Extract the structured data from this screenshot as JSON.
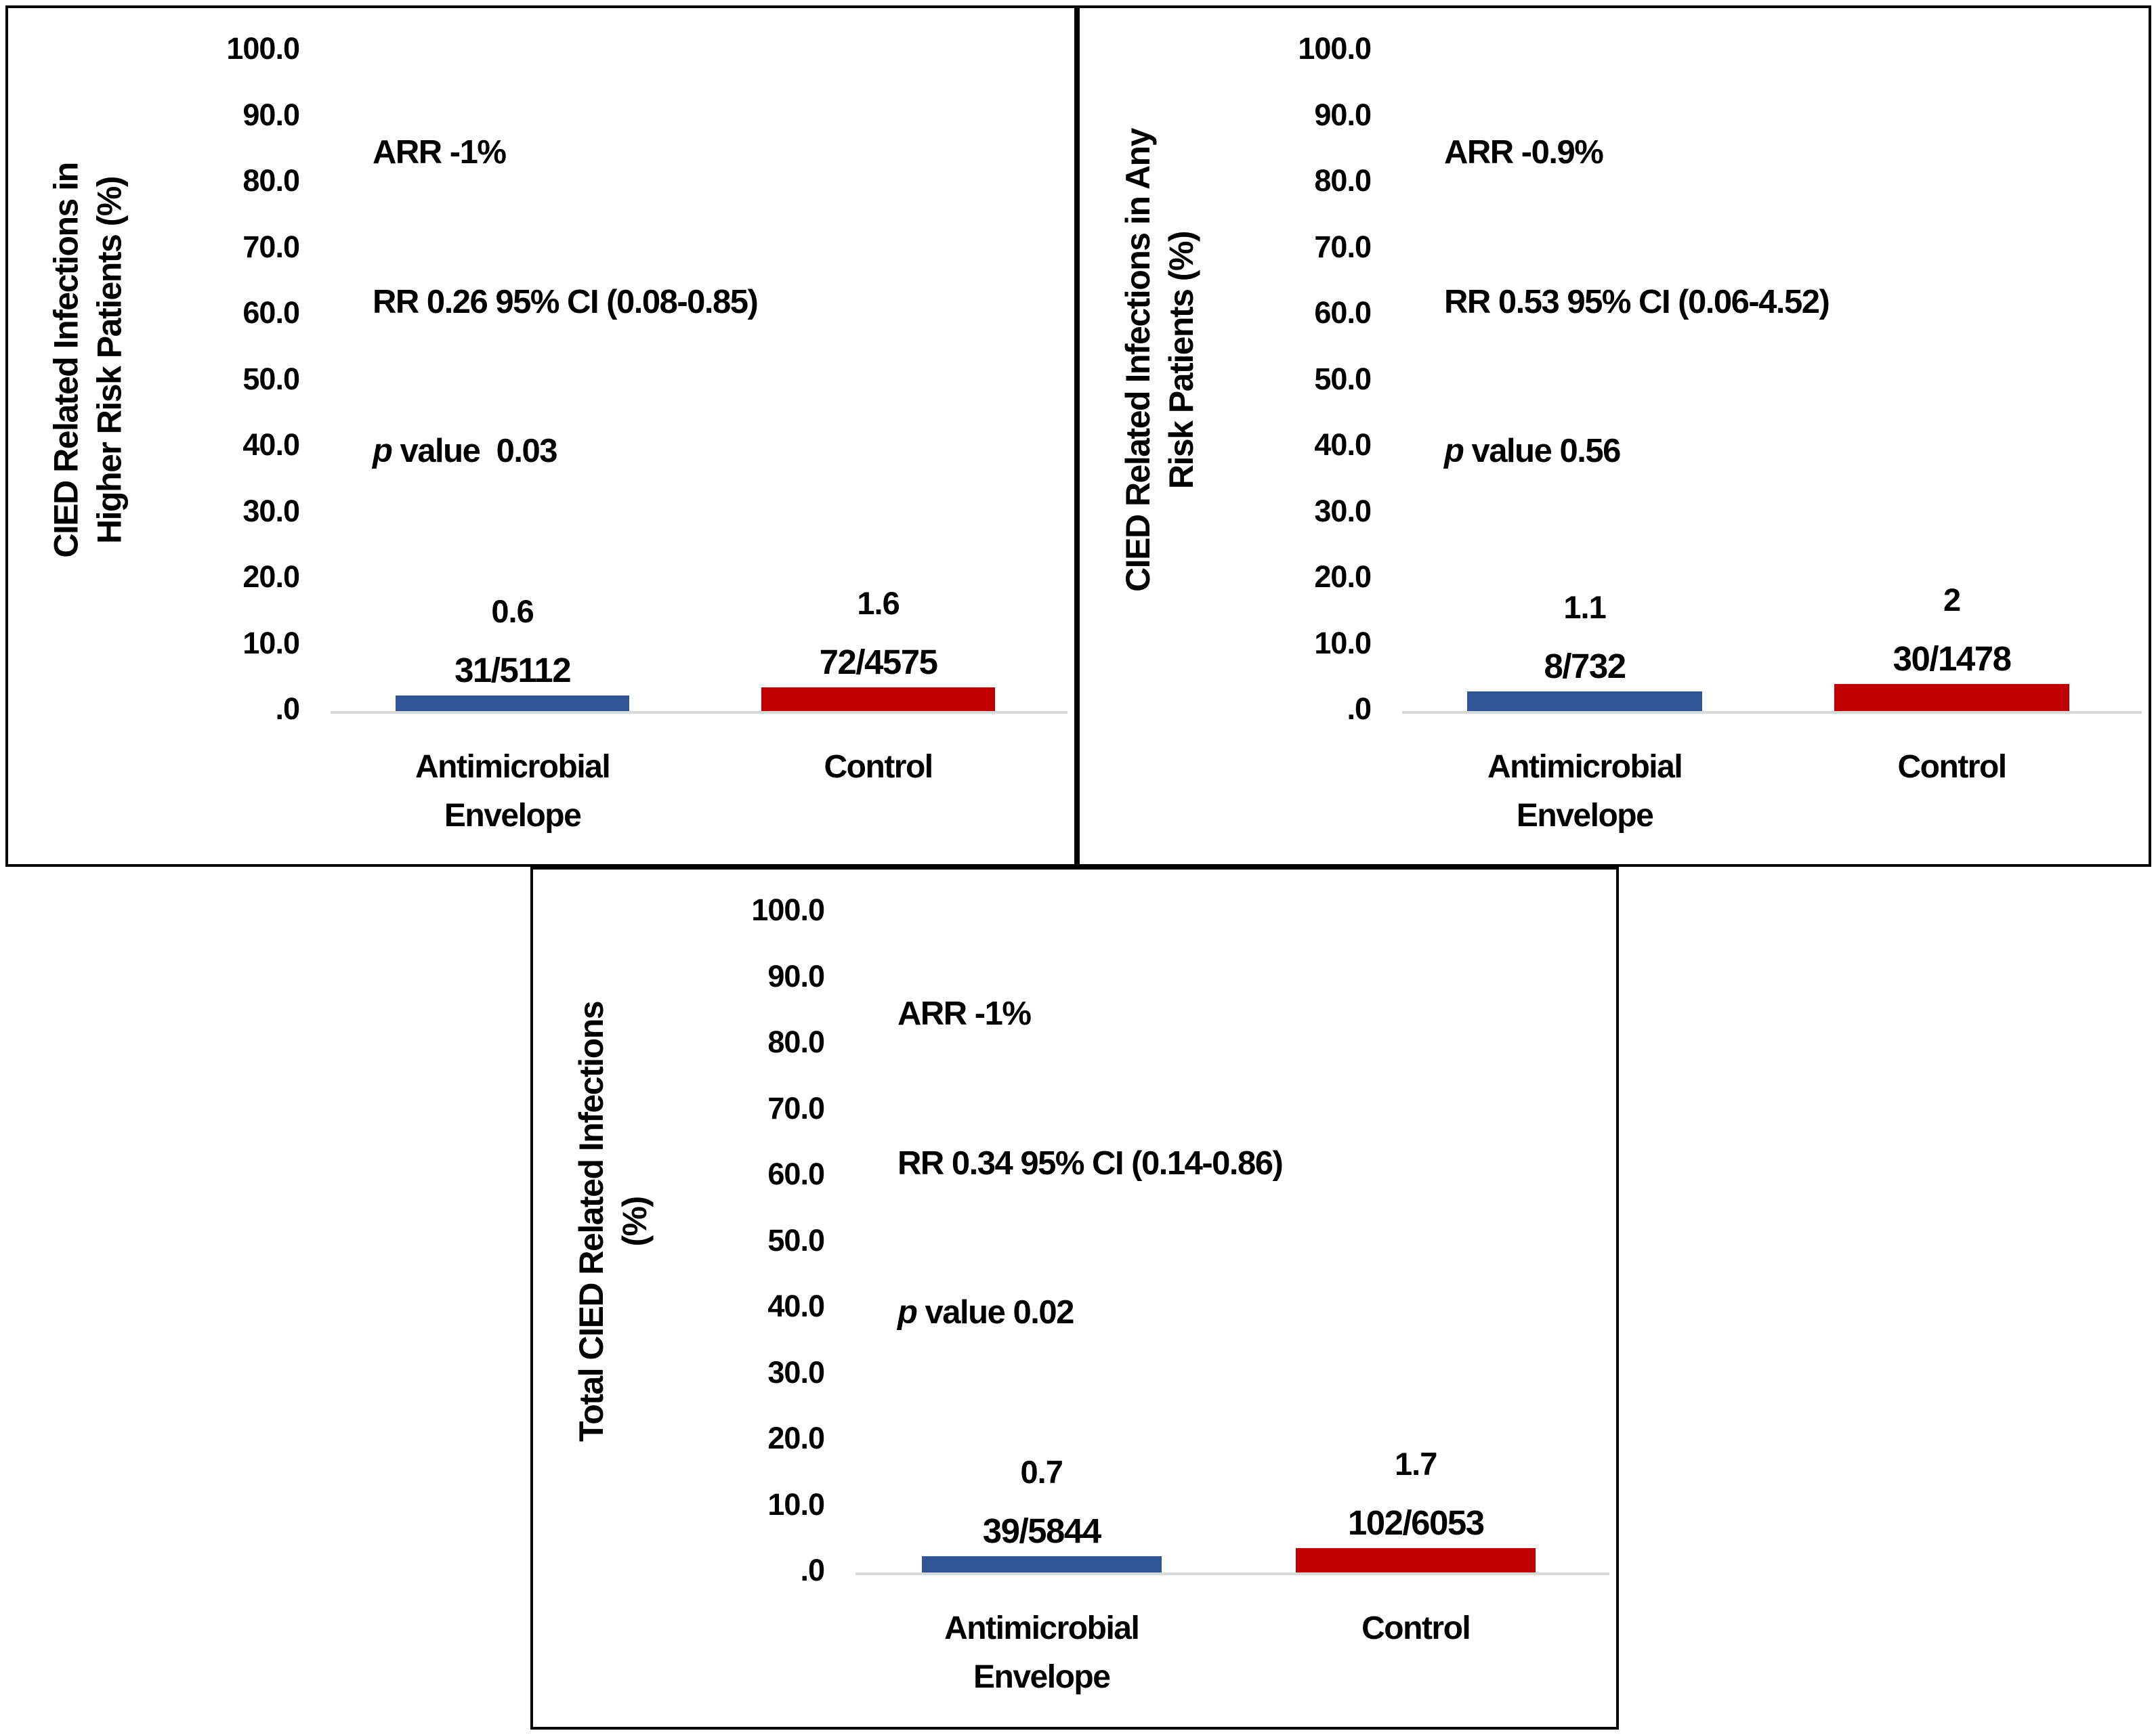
{
  "figure": {
    "background": "#ffffff",
    "panel_border_color": "#000000",
    "axis_line_color": "#d9d9d9",
    "text_color": "#000000",
    "envelope_bar_color": "#2F5597",
    "control_bar_color": "#C00000"
  },
  "chart_data": [
    {
      "type": "bar",
      "ylabel_lines": [
        "CIED Related Infections in",
        "Higher Risk Patients (%)"
      ],
      "ylim": [
        0,
        100
      ],
      "ytick_labels": [
        "100.0",
        "90.0",
        "80.0",
        "70.0",
        "60.0",
        "50.0",
        "40.0",
        "30.0",
        "20.0",
        "10.0",
        ".0"
      ],
      "grid": false,
      "legend": null,
      "categories": [
        "Antimicrobial Envelope",
        "Control"
      ],
      "category_label_lines": [
        [
          "Antimicrobial",
          "Envelope"
        ],
        [
          "Control"
        ]
      ],
      "values": [
        0.6,
        1.6
      ],
      "bar_value_labels": [
        "0.6",
        "1.6"
      ],
      "fraction_labels": [
        "31/5112",
        "72/4575"
      ],
      "events": [
        31,
        72
      ],
      "totals": [
        5112,
        4575
      ],
      "bar_colors": [
        "#2F5597",
        "#C00000"
      ],
      "annotation": {
        "arr": "ARR -1%",
        "rr": "RR 0.26 95% CI (0.08-0.85)",
        "p_prefix": "p",
        "p_rest": " value  0.03"
      }
    },
    {
      "type": "bar",
      "ylabel_lines": [
        "CIED Related Infections in Any",
        "Risk Patients (%)"
      ],
      "ylim": [
        0,
        100
      ],
      "ytick_labels": [
        "100.0",
        "90.0",
        "80.0",
        "70.0",
        "60.0",
        "50.0",
        "40.0",
        "30.0",
        "20.0",
        "10.0",
        ".0"
      ],
      "grid": false,
      "legend": null,
      "categories": [
        "Antimicrobial Envelope",
        "Control"
      ],
      "category_label_lines": [
        [
          "Antimicrobial",
          "Envelope"
        ],
        [
          "Control"
        ]
      ],
      "values": [
        1.1,
        2
      ],
      "bar_value_labels": [
        "1.1",
        "2"
      ],
      "fraction_labels": [
        "8/732",
        "30/1478"
      ],
      "events": [
        8,
        30
      ],
      "totals": [
        732,
        1478
      ],
      "bar_colors": [
        "#2F5597",
        "#C00000"
      ],
      "annotation": {
        "arr": "ARR -0.9%",
        "rr": "RR 0.53 95% CI (0.06-4.52)",
        "p_prefix": "p",
        "p_rest": " value 0.56"
      }
    },
    {
      "type": "bar",
      "ylabel_lines": [
        "Total CIED Related Infections",
        "(%)"
      ],
      "ylim": [
        0,
        100
      ],
      "ytick_labels": [
        "100.0",
        "90.0",
        "80.0",
        "70.0",
        "60.0",
        "50.0",
        "40.0",
        "30.0",
        "20.0",
        "10.0",
        ".0"
      ],
      "grid": false,
      "legend": null,
      "categories": [
        "Antimicrobial Envelope",
        "Control"
      ],
      "category_label_lines": [
        [
          "Antimicrobial",
          "Envelope"
        ],
        [
          "Control"
        ]
      ],
      "values": [
        0.7,
        1.7
      ],
      "bar_value_labels": [
        "0.7",
        "1.7"
      ],
      "fraction_labels": [
        "39/5844",
        "102/6053"
      ],
      "events": [
        39,
        102
      ],
      "totals": [
        5844,
        6053
      ],
      "bar_colors": [
        "#2F5597",
        "#C00000"
      ],
      "annotation": {
        "arr": "ARR -1%",
        "rr": "RR 0.34 95% CI (0.14-0.86)",
        "p_prefix": "p",
        "p_rest": " value 0.02"
      }
    }
  ]
}
